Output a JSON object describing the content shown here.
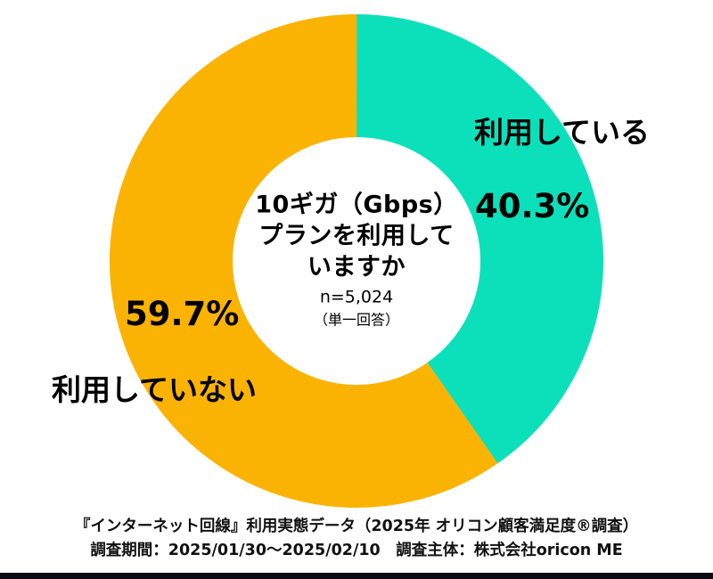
{
  "chart_data": {
    "type": "pie",
    "subtype": "donut",
    "title": "10ギガ（Gbps）プランを利用していますか",
    "center_title_lines": [
      "10ギガ（Gbps）",
      "プランを利用して",
      "いますか"
    ],
    "sample_size_label": "n=5,024",
    "answer_type_label": "（単一回答）",
    "start_angle_deg": -90,
    "direction": "clockwise",
    "legend_position": "on-chart",
    "segments": [
      {
        "label": "利用している",
        "value": 40.3,
        "percent_label": "40.3%",
        "color": "#0ce0bb"
      },
      {
        "label": "利用していない",
        "value": 59.7,
        "percent_label": "59.7%",
        "color": "#fbb303"
      }
    ]
  },
  "footer": {
    "line1": "『インターネット回線』利用実態データ（2025年 オリコン顧客満足度®調査）",
    "line2": "調査期間：2025/01/30～2025/02/10　調査主体：株式会社oricon ME"
  }
}
